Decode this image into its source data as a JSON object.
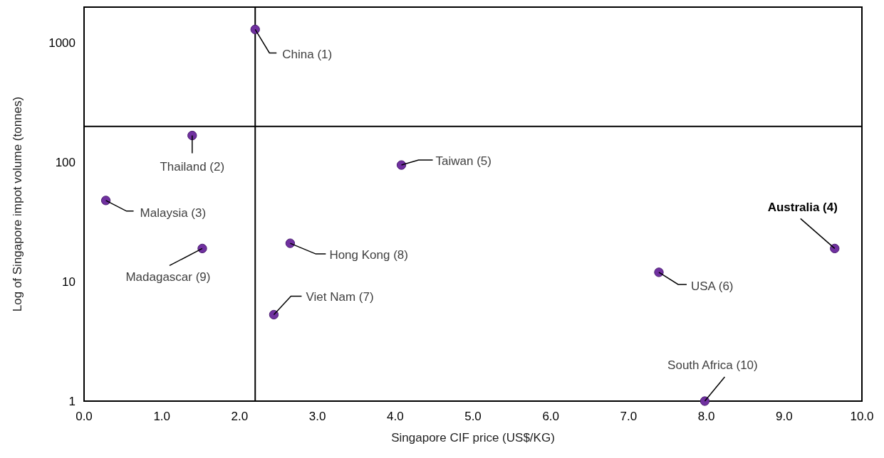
{
  "chart_data": {
    "type": "scatter",
    "xlabel": "Singapore CIF price (US$/KG)",
    "ylabel": "Log of Singapore impot volume (tonnes)",
    "series": [
      {
        "color": "#7030a0",
        "x": [
          2.2,
          1.39,
          0.28,
          1.52,
          4.08,
          2.65,
          2.44,
          7.39,
          9.65,
          7.98
        ],
        "values": [
          1300,
          168,
          48,
          19,
          95,
          21,
          5.3,
          12,
          19,
          1
        ]
      }
    ],
    "xlim": [
      0,
      10
    ],
    "ylim": [
      1,
      2000
    ],
    "xticks": [
      {
        "value": 0,
        "label": "0.0"
      },
      {
        "value": 1,
        "label": "1.0"
      },
      {
        "value": 2,
        "label": "2.0"
      },
      {
        "value": 3,
        "label": "3.0"
      },
      {
        "value": 4,
        "label": "4.0"
      },
      {
        "value": 5,
        "label": "5.0"
      },
      {
        "value": 6,
        "label": "6.0"
      },
      {
        "value": 7,
        "label": "7.0"
      },
      {
        "value": 8,
        "label": "8.0"
      },
      {
        "value": 9,
        "label": "9.0"
      },
      {
        "value": 10,
        "label": "10.0"
      }
    ],
    "yticks": [
      1,
      10,
      100,
      1000
    ],
    "log": "y",
    "marker": "circle",
    "ref_lines": [
      {
        "axis": "x",
        "value": 2.2,
        "color": "#000000"
      },
      {
        "axis": "y",
        "value": 200,
        "color": "#000000"
      }
    ],
    "annotations": [
      {
        "text": "China (1)",
        "x": 2.2,
        "y": 1300
      },
      {
        "text": "Thailand (2)",
        "x": 1.39,
        "y": 168
      },
      {
        "text": "Malaysia (3)",
        "x": 0.28,
        "y": 48
      },
      {
        "text": "Madagascar (9)",
        "x": 1.52,
        "y": 19
      },
      {
        "text": "Taiwan (5)",
        "x": 4.08,
        "y": 95
      },
      {
        "text": "Hong Kong (8)",
        "x": 2.65,
        "y": 21
      },
      {
        "text": "Viet Nam (7)",
        "x": 2.44,
        "y": 5.3
      },
      {
        "text": "USA (6)",
        "x": 7.39,
        "y": 12
      },
      {
        "text": "Australia (4)",
        "x": 9.65,
        "y": 19
      },
      {
        "text": "South Africa (10)",
        "x": 7.98,
        "y": 1
      }
    ]
  }
}
